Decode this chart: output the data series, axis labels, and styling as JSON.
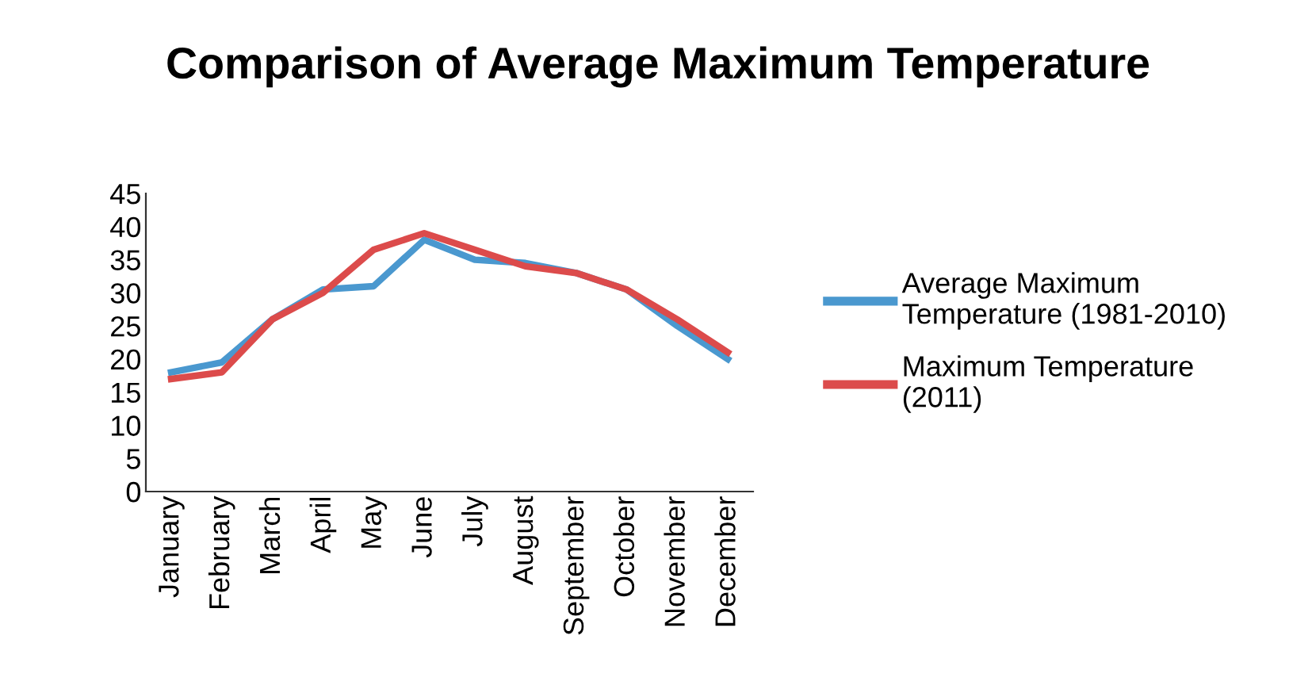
{
  "chart_data": {
    "type": "line",
    "title": "Comparison of Average Maximum Temperature",
    "categories": [
      "January",
      "February",
      "March",
      "April",
      "May",
      "June",
      "July",
      "August",
      "September",
      "October",
      "November",
      "December"
    ],
    "series": [
      {
        "name": "Average Maximum Temperature (1981-2010)",
        "color": "#4a98cf",
        "values": [
          18,
          19.5,
          26,
          30.5,
          31,
          38,
          35,
          34.5,
          33,
          30.5,
          25,
          20
        ]
      },
      {
        "name": "Maximum Temperature (2011)",
        "color": "#dc4b4b",
        "values": [
          17,
          18,
          26,
          30,
          36.5,
          39,
          36.5,
          34,
          33,
          30.5,
          26,
          21
        ]
      }
    ],
    "ylim": [
      0,
      45
    ],
    "yticks": [
      0,
      5,
      10,
      15,
      20,
      25,
      30,
      35,
      40,
      45
    ],
    "grid": false,
    "legend": "right",
    "marker": "none",
    "line_style": "solid"
  }
}
